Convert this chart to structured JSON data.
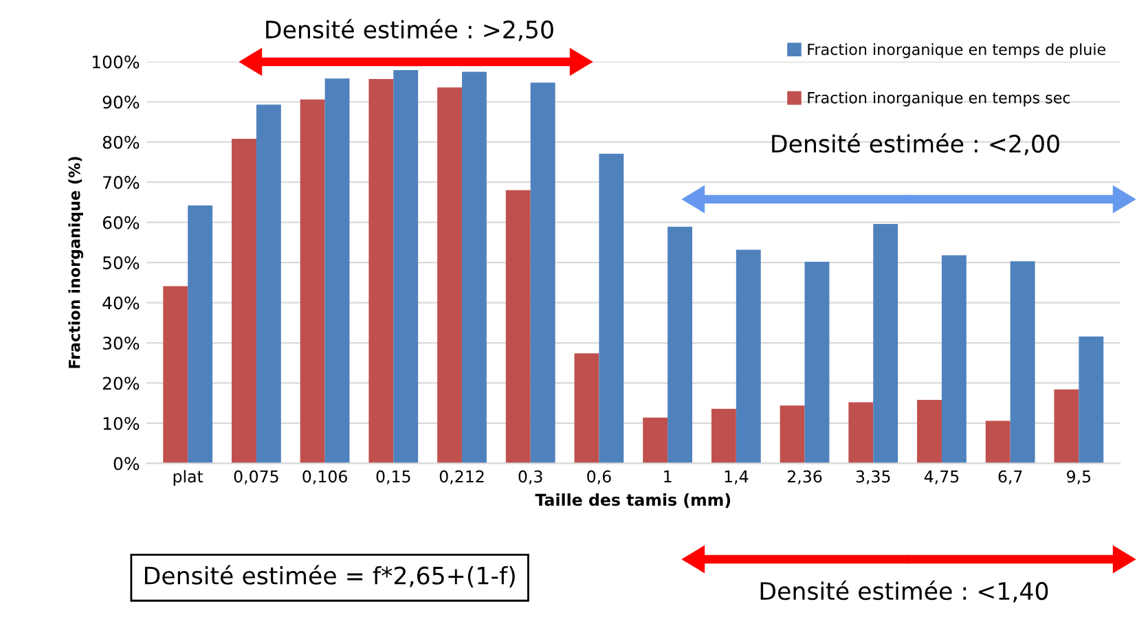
{
  "chart_data": {
    "type": "bar",
    "xlabel": "Taille des tamis (mm)",
    "ylabel": "Fraction inorganique (%)",
    "categories": [
      "plat",
      "0,075",
      "0,106",
      "0,15",
      "0,212",
      "0,3",
      "0,6",
      "1",
      "1,4",
      "2,36",
      "3,35",
      "4,75",
      "6,7",
      "9,5"
    ],
    "series": [
      {
        "name": "Fraction inorganique en temps sec",
        "color": "#c0504d",
        "values": [
          44.1,
          80.8,
          90.6,
          95.7,
          93.6,
          68.0,
          27.4,
          11.4,
          13.6,
          14.4,
          15.2,
          15.8,
          10.6,
          18.4
        ]
      },
      {
        "name": "Fraction inorganique en temps de pluie",
        "color": "#4f81bd",
        "values": [
          64.2,
          89.3,
          95.8,
          97.9,
          97.5,
          94.8,
          77.1,
          58.9,
          53.2,
          50.2,
          59.6,
          51.8,
          50.3,
          31.6
        ]
      }
    ],
    "ylim": [
      0,
      100
    ],
    "yticks": [
      {
        "value": 0,
        "label": "0%"
      },
      {
        "value": 10,
        "label": "10%"
      },
      {
        "value": 20,
        "label": "20%"
      },
      {
        "value": 30,
        "label": "30%"
      },
      {
        "value": 40,
        "label": "40%"
      },
      {
        "value": 50,
        "label": "50%"
      },
      {
        "value": 60,
        "label": "60%"
      },
      {
        "value": 70,
        "label": "70%"
      },
      {
        "value": 80,
        "label": "80%"
      },
      {
        "value": 90,
        "label": "90%"
      },
      {
        "value": 100,
        "label": "100%"
      }
    ],
    "grid": "y",
    "legend": "top right",
    "annotations": [
      "Densité estimée : >2,50",
      "Densité estimée : <2,00",
      "Densité estimée = f*2,65+(1-f)",
      "Densité estimée : <1,40"
    ]
  }
}
